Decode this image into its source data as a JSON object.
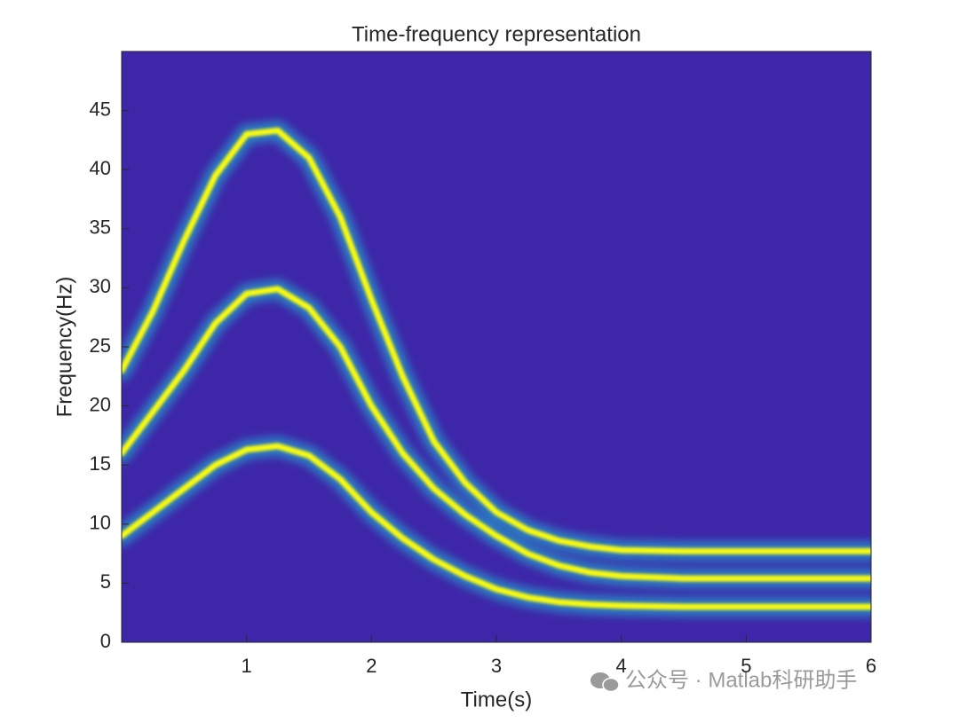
{
  "chart_data": {
    "type": "spectrogram",
    "title": "Time-frequency representation",
    "x_label": "Time(s)",
    "y_label": "Frequency(Hz)",
    "x": [
      0,
      0.25,
      0.5,
      0.75,
      1,
      1.25,
      1.5,
      1.75,
      2,
      2.25,
      2.5,
      2.75,
      3,
      3.25,
      3.5,
      3.75,
      4,
      4.5,
      5,
      5.5,
      6
    ],
    "series": [
      {
        "color": "#f9fb0e",
        "values": [
          23,
          28,
          34,
          39.5,
          43,
          43.3,
          41,
          36,
          29,
          22.5,
          17,
          13.5,
          11,
          9.5,
          8.6,
          8.1,
          7.8,
          7.7,
          7.7,
          7.7,
          7.7
        ]
      },
      {
        "color": "#f9fb0e",
        "values": [
          16,
          19.5,
          23,
          27,
          29.5,
          29.9,
          28.3,
          25,
          20,
          16,
          13,
          10.8,
          9,
          7.5,
          6.5,
          5.9,
          5.6,
          5.4,
          5.4,
          5.4,
          5.4
        ]
      },
      {
        "color": "#f9fb0e",
        "values": [
          9,
          11,
          13,
          15,
          16.3,
          16.6,
          15.8,
          13.8,
          11,
          8.8,
          7,
          5.6,
          4.5,
          3.8,
          3.4,
          3.2,
          3.1,
          3.0,
          3.0,
          3.0,
          3.0
        ]
      }
    ],
    "background_color": "#3e26a8",
    "glow_color": "#1fc8d8",
    "xlim": [
      0,
      6
    ],
    "ylim": [
      0,
      50
    ],
    "xticks": [
      1,
      2,
      3,
      4,
      5,
      6
    ],
    "yticks": [
      0,
      5,
      10,
      15,
      20,
      25,
      30,
      35,
      40,
      45
    ],
    "watermark": "公众号 · Matlab科研助手"
  }
}
